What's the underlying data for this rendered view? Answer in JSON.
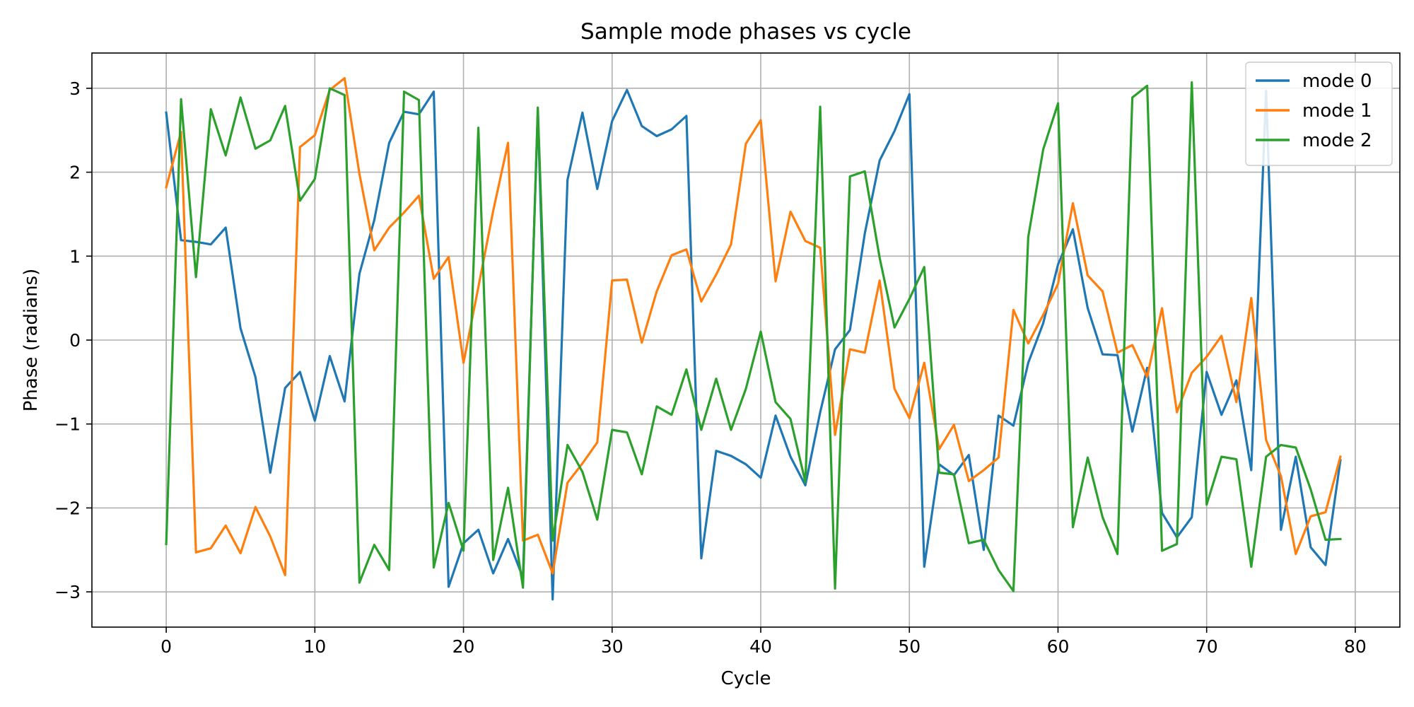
{
  "chart_data": {
    "type": "line",
    "title": "Sample mode phases vs cycle",
    "xlabel": "Cycle",
    "ylabel": "Phase (radians)",
    "xlim": [
      -5,
      83
    ],
    "ylim": [
      -3.42,
      3.42
    ],
    "xticks": [
      0,
      10,
      20,
      30,
      40,
      50,
      60,
      70,
      80
    ],
    "xtick_labels": [
      "0",
      "10",
      "20",
      "30",
      "40",
      "50",
      "60",
      "70",
      "80"
    ],
    "yticks": [
      -3,
      -2,
      -1,
      0,
      1,
      2,
      3
    ],
    "ytick_labels": [
      "−3",
      "−2",
      "−1",
      "0",
      "1",
      "2",
      "3"
    ],
    "grid": true,
    "legend_position": "top-right",
    "x": [
      0,
      1,
      2,
      3,
      4,
      5,
      6,
      7,
      8,
      9,
      10,
      11,
      12,
      13,
      14,
      15,
      16,
      17,
      18,
      19,
      20,
      21,
      22,
      23,
      24,
      25,
      26,
      27,
      28,
      29,
      30,
      31,
      32,
      33,
      34,
      35,
      36,
      37,
      38,
      39,
      40,
      41,
      42,
      43,
      44,
      45,
      46,
      47,
      48,
      49,
      50,
      51,
      52,
      53,
      54,
      55,
      56,
      57,
      58,
      59,
      60,
      61,
      62,
      63,
      64,
      65,
      66,
      67,
      68,
      69,
      70,
      71,
      72,
      73,
      74,
      75,
      76,
      77,
      78,
      79
    ],
    "series": [
      {
        "name": "mode 0",
        "color": "#1f77b4",
        "values": [
          2.71,
          1.19,
          1.17,
          1.14,
          1.34,
          0.14,
          -0.44,
          -1.58,
          -0.57,
          -0.38,
          -0.96,
          -0.19,
          -0.73,
          0.79,
          1.43,
          2.35,
          2.72,
          2.69,
          2.96,
          -2.94,
          -2.42,
          -2.26,
          -2.78,
          -2.37,
          -2.83,
          2.72,
          -3.09,
          1.91,
          2.71,
          1.8,
          2.61,
          2.98,
          2.55,
          2.43,
          2.51,
          2.67,
          -2.6,
          -1.32,
          -1.38,
          -1.48,
          -1.64,
          -0.9,
          -1.39,
          -1.73,
          -0.86,
          -0.11,
          0.12,
          1.27,
          2.14,
          2.49,
          2.93,
          -2.7,
          -1.48,
          -1.61,
          -1.37,
          -2.5,
          -0.9,
          -1.02,
          -0.27,
          0.2,
          0.9,
          1.32,
          0.38,
          -0.17,
          -0.18,
          -1.09,
          -0.33,
          -2.06,
          -2.35,
          -2.11,
          -0.38,
          -0.89,
          -0.48,
          -1.55,
          2.97,
          -2.26,
          -1.39,
          -2.47,
          -2.68,
          -1.43
        ]
      },
      {
        "name": "mode 1",
        "color": "#ff7f0e",
        "values": [
          1.82,
          2.48,
          -2.53,
          -2.48,
          -2.21,
          -2.54,
          -1.99,
          -2.34,
          -2.8,
          2.3,
          2.44,
          2.98,
          3.12,
          1.98,
          1.07,
          1.34,
          1.52,
          1.72,
          0.73,
          0.99,
          -0.27,
          0.63,
          1.54,
          2.35,
          -2.39,
          -2.32,
          -2.78,
          -1.7,
          -1.47,
          -1.22,
          0.71,
          0.72,
          -0.03,
          0.58,
          1.01,
          1.08,
          0.46,
          0.78,
          1.14,
          2.34,
          2.62,
          0.7,
          1.53,
          1.18,
          1.1,
          -1.13,
          -0.11,
          -0.15,
          0.71,
          -0.58,
          -0.93,
          -0.27,
          -1.3,
          -1.01,
          -1.68,
          -1.55,
          -1.4,
          0.36,
          -0.04,
          0.3,
          0.67,
          1.63,
          0.77,
          0.58,
          -0.15,
          -0.06,
          -0.44,
          0.38,
          -0.86,
          -0.39,
          -0.2,
          0.05,
          -0.74,
          0.5,
          -1.19,
          -1.62,
          -2.55,
          -2.1,
          -2.05,
          -1.39
        ]
      },
      {
        "name": "mode 2",
        "color": "#2ca02c",
        "values": [
          -2.43,
          2.87,
          0.75,
          2.75,
          2.2,
          2.89,
          2.28,
          2.38,
          2.79,
          1.66,
          1.92,
          3.0,
          2.92,
          -2.89,
          -2.44,
          -2.74,
          2.96,
          2.86,
          -2.71,
          -1.94,
          -2.51,
          2.53,
          -2.62,
          -1.76,
          -2.95,
          2.77,
          -2.39,
          -1.25,
          -1.57,
          -2.14,
          -1.07,
          -1.1,
          -1.6,
          -0.79,
          -0.89,
          -0.35,
          -1.07,
          -0.46,
          -1.07,
          -0.58,
          0.1,
          -0.74,
          -0.94,
          -1.69,
          2.78,
          -2.96,
          1.95,
          2.01,
          0.98,
          0.15,
          0.49,
          0.87,
          -1.58,
          -1.6,
          -2.42,
          -2.38,
          -2.74,
          -2.99,
          1.23,
          2.27,
          2.82,
          -2.23,
          -1.4,
          -2.11,
          -2.55,
          2.89,
          3.03,
          -2.51,
          -2.43,
          3.07,
          -1.96,
          -1.39,
          -1.42,
          -2.7,
          -1.39,
          -1.25,
          -1.28,
          -1.78,
          -2.38,
          -2.37
        ]
      }
    ]
  }
}
